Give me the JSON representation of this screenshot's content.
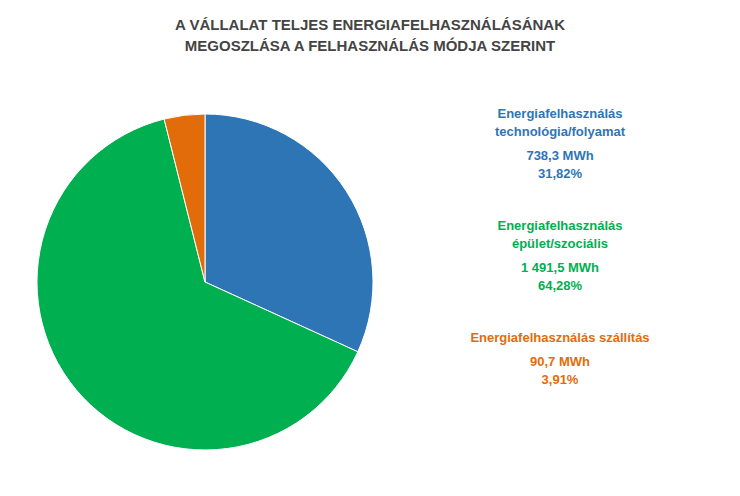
{
  "chart_data": {
    "type": "pie",
    "title": "A VÁLLALAT TELJES ENERGIAFELHASZNÁLÁSÁNAK\nMEGOSZLÁSA A FELHASZNÁLÁS MÓDJA SZERINT",
    "categories": [
      "Energiafelhasználás\ntechnológia/folyamat",
      "Energiafelhasználás\népület/szociális",
      "Energiafelhasználás szállítás"
    ],
    "values": [
      31.82,
      64.28,
      3.91
    ],
    "value_labels": [
      "738,3 MWh\n31,82%",
      "1 491,5 MWh\n64,28%",
      "90,7 MWh\n3,91%"
    ],
    "colors": [
      "#2E75B6",
      "#00B050",
      "#E36C0A"
    ],
    "data_labels": true
  }
}
